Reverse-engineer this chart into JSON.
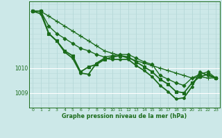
{
  "title": "Graphe pression niveau de la mer (hPa)",
  "bg_color": "#cce8e8",
  "plot_bg_color": "#cce8e8",
  "grid_color_major_y": "#ffffff",
  "grid_color_x": "#b0d4d4",
  "line_color": "#1a6b1a",
  "x_ticks": [
    0,
    1,
    2,
    3,
    4,
    5,
    6,
    7,
    8,
    9,
    10,
    11,
    12,
    13,
    14,
    15,
    16,
    17,
    18,
    19,
    20,
    21,
    22,
    23
  ],
  "y_ticks": [
    1009,
    1010
  ],
  "ylim_min": 1008.4,
  "ylim_max": 1012.7,
  "lines": [
    {
      "data": [
        1012.3,
        1012.3,
        1012.1,
        1011.9,
        1011.7,
        1011.5,
        1011.3,
        1011.1,
        1010.9,
        1010.7,
        1010.6,
        1010.5,
        1010.4,
        1010.3,
        1010.2,
        1010.1,
        1010.0,
        1009.9,
        1009.8,
        1009.7,
        1009.6,
        1009.65,
        1009.6,
        1009.6
      ],
      "marker": "+",
      "ms": 4,
      "lw": 1.0
    },
    {
      "data": [
        1012.3,
        1012.3,
        1011.7,
        1011.4,
        1011.2,
        1011.0,
        1010.8,
        1010.7,
        1010.55,
        1010.45,
        1010.5,
        1010.55,
        1010.55,
        1010.4,
        1010.25,
        1010.15,
        1009.7,
        1009.55,
        1009.4,
        1009.3,
        1009.6,
        1009.75,
        1009.85,
        1009.6
      ],
      "marker": "D",
      "ms": 2.5,
      "lw": 1.0
    },
    {
      "data": [
        1012.3,
        1012.3,
        1011.4,
        1011.1,
        1010.7,
        1010.5,
        1009.85,
        1010.05,
        1010.15,
        1010.35,
        1010.45,
        1010.5,
        1010.45,
        1010.25,
        1010.05,
        1009.85,
        1009.55,
        1009.35,
        1009.05,
        1009.0,
        1009.4,
        1009.65,
        1009.75,
        1009.6
      ],
      "marker": "s",
      "ms": 2.5,
      "lw": 1.3
    },
    {
      "data": [
        1012.3,
        1012.2,
        1011.4,
        1011.1,
        1010.65,
        1010.4,
        1009.8,
        1009.75,
        1010.2,
        1010.4,
        1010.35,
        1010.35,
        1010.35,
        1010.1,
        1009.9,
        1009.65,
        1009.3,
        1009.05,
        1008.75,
        1008.8,
        1009.25,
        1009.85,
        1009.7,
        1009.6
      ],
      "marker": "o",
      "ms": 2.5,
      "lw": 1.3
    }
  ]
}
